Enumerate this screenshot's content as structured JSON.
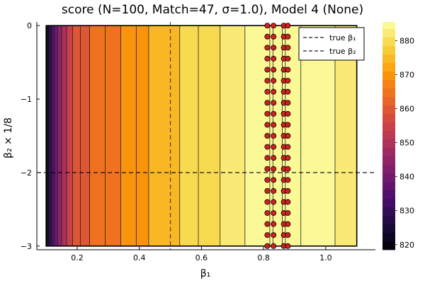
{
  "chart_data": {
    "type": "heatmap",
    "title": "score (N=100, Match=47, σ=1.0), Model 4 (None)",
    "xlabel": "β₁",
    "ylabel": "β₂ × 1/8",
    "xlim": [
      0.07,
      1.16
    ],
    "ylim": [
      -3.05,
      0.05
    ],
    "x_ticks": [
      0.2,
      0.4,
      0.6,
      0.8,
      1.0
    ],
    "x_tick_labels": [
      "0.2",
      "0.4",
      "0.6",
      "0.8",
      "1.0"
    ],
    "y_ticks": [
      -3,
      -2,
      -1,
      0
    ],
    "y_tick_labels": [
      "−3",
      "−2",
      "−1",
      "0"
    ],
    "data_x_range": [
      0.1,
      1.1
    ],
    "data_y_range": [
      -3,
      0
    ],
    "colorbar": {
      "range": [
        818.5,
        885.5
      ],
      "ticks": [
        820,
        830,
        840,
        850,
        860,
        870,
        880
      ],
      "tick_labels": [
        "820",
        "830",
        "840",
        "850",
        "860",
        "870",
        "880"
      ],
      "levels": [
        818.5,
        821,
        823.5,
        826,
        828.5,
        831,
        833.5,
        836,
        838.5,
        841,
        843.5,
        846,
        848.5,
        851,
        853.5,
        856,
        858.5,
        861,
        863.5,
        866,
        868.5,
        871,
        873.5,
        876,
        878.5,
        881,
        883.5,
        885.5
      ]
    },
    "contour_bands": [
      {
        "x0": 0.1,
        "x1": 0.105,
        "score": 819.5
      },
      {
        "x0": 0.105,
        "x1": 0.111,
        "score": 824.5
      },
      {
        "x0": 0.111,
        "x1": 0.118,
        "score": 829.5
      },
      {
        "x0": 0.118,
        "x1": 0.127,
        "score": 834.5
      },
      {
        "x0": 0.127,
        "x1": 0.137,
        "score": 839.5
      },
      {
        "x0": 0.137,
        "x1": 0.15,
        "score": 844.5
      },
      {
        "x0": 0.15,
        "x1": 0.166,
        "score": 849.5
      },
      {
        "x0": 0.166,
        "x1": 0.185,
        "score": 854.5
      },
      {
        "x0": 0.185,
        "x1": 0.24,
        "score": 859.5
      },
      {
        "x0": 0.24,
        "x1": 0.34,
        "score": 864.5
      },
      {
        "x0": 0.34,
        "x1": 0.43,
        "score": 869.5
      },
      {
        "x0": 0.43,
        "x1": 0.53,
        "score": 874.5
      },
      {
        "x0": 0.53,
        "x1": 0.66,
        "score": 879.5
      },
      {
        "x0": 0.66,
        "x1": 0.74,
        "score": 882.0
      },
      {
        "x0": 0.74,
        "x1": 1.03,
        "score": 884.5
      },
      {
        "x0": 1.03,
        "x1": 1.1,
        "score": 882.0
      }
    ],
    "contour_lines_x": [
      0.105,
      0.111,
      0.118,
      0.127,
      0.137,
      0.15,
      0.166,
      0.185,
      0.21,
      0.24,
      0.29,
      0.34,
      0.39,
      0.43,
      0.53,
      0.59,
      0.66,
      0.74,
      0.82,
      0.83,
      0.86,
      0.87,
      0.92,
      1.03
    ],
    "true_beta1": 0.5,
    "true_beta2": -2,
    "markers": {
      "color": "#d21f1f",
      "x": [
        0.812,
        0.832,
        0.865,
        0.878
      ],
      "y_from": -3,
      "y_to": 0,
      "count_per_column": 21
    },
    "legend": {
      "position": "top-right",
      "entries": [
        {
          "label": "true β₁",
          "style": "dashed"
        },
        {
          "label": "true β₂",
          "style": "dashed"
        }
      ]
    },
    "colormap": [
      "#000004",
      "#1b0c41",
      "#4a0c6b",
      "#781c6d",
      "#a52c60",
      "#cf4446",
      "#ed6925",
      "#fb9b06",
      "#f7d13d",
      "#fcffa4"
    ]
  }
}
